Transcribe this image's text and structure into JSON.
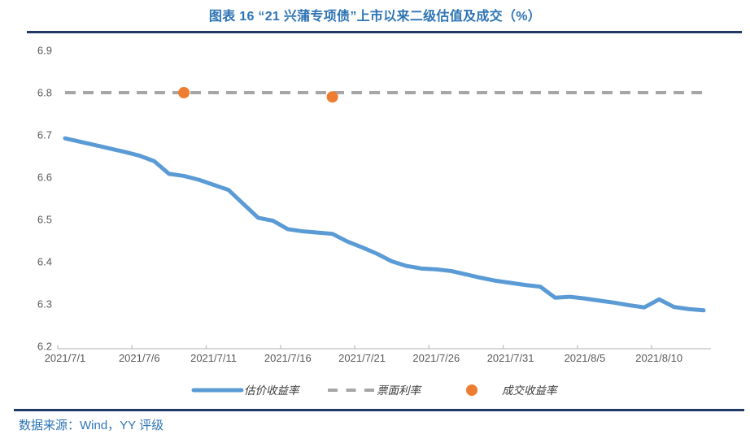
{
  "header": {
    "title": "图表 16 “21 兴蒲专项债”上市以来二级估值及成交（%）"
  },
  "footer": {
    "source": "数据来源：Wind，YY 评级"
  },
  "colors": {
    "title": "#2E74B5",
    "divider": "#1F3864",
    "source_text": "#2E74B5",
    "estimate_line": "#5B9BD5",
    "coupon_line": "#A6A6A6",
    "trade_dot": "#ED7D31",
    "axis_text": "#595959",
    "axis_line": "#BFBFBF"
  },
  "chart_data": {
    "type": "line",
    "title": "图表 16 “21 兴蒲专项债”上市以来二级估值及成交（%）",
    "x": [
      "2021/7/1",
      "2021/7/2",
      "2021/7/3",
      "2021/7/4",
      "2021/7/5",
      "2021/7/6",
      "2021/7/7",
      "2021/7/8",
      "2021/7/9",
      "2021/7/10",
      "2021/7/11",
      "2021/7/12",
      "2021/7/13",
      "2021/7/14",
      "2021/7/15",
      "2021/7/16",
      "2021/7/17",
      "2021/7/18",
      "2021/7/19",
      "2021/7/20",
      "2021/7/21",
      "2021/7/22",
      "2021/7/23",
      "2021/7/24",
      "2021/7/25",
      "2021/7/26",
      "2021/7/27",
      "2021/7/28",
      "2021/7/29",
      "2021/7/30",
      "2021/7/31",
      "2021/8/1",
      "2021/8/2",
      "2021/8/3",
      "2021/8/4",
      "2021/8/5",
      "2021/8/6",
      "2021/8/7",
      "2021/8/8",
      "2021/8/9",
      "2021/8/10",
      "2021/8/11",
      "2021/8/12",
      "2021/8/13"
    ],
    "series": [
      {
        "name": "估价收益率",
        "type": "line",
        "color": "#5B9BD5",
        "values": [
          6.692,
          6.684,
          6.676,
          6.668,
          6.66,
          6.651,
          6.638,
          6.608,
          6.603,
          6.594,
          6.582,
          6.57,
          6.537,
          6.504,
          6.497,
          6.477,
          6.472,
          6.469,
          6.466,
          6.448,
          6.434,
          6.419,
          6.401,
          6.39,
          6.384,
          6.382,
          6.378,
          6.37,
          6.362,
          6.355,
          6.35,
          6.345,
          6.341,
          6.315,
          6.317,
          6.313,
          6.308,
          6.303,
          6.297,
          6.292,
          6.311,
          6.293,
          6.288,
          6.285
        ]
      },
      {
        "name": "票面利率",
        "type": "dashed_line",
        "color": "#A6A6A6",
        "value": 6.8
      },
      {
        "name": "成交收益率",
        "type": "scatter",
        "color": "#ED7D31",
        "points": [
          {
            "date": "2021/7/9",
            "value": 6.8
          },
          {
            "date": "2021/7/19",
            "value": 6.79
          }
        ]
      }
    ],
    "ylim": [
      6.2,
      6.9
    ],
    "yticks": [
      6.2,
      6.3,
      6.4,
      6.5,
      6.6,
      6.7,
      6.8,
      6.9
    ],
    "xticks": [
      "2021/7/1",
      "2021/7/6",
      "2021/7/11",
      "2021/7/16",
      "2021/7/21",
      "2021/7/26",
      "2021/7/31",
      "2021/8/5",
      "2021/8/10"
    ],
    "grid": false,
    "legend_position": "bottom"
  }
}
